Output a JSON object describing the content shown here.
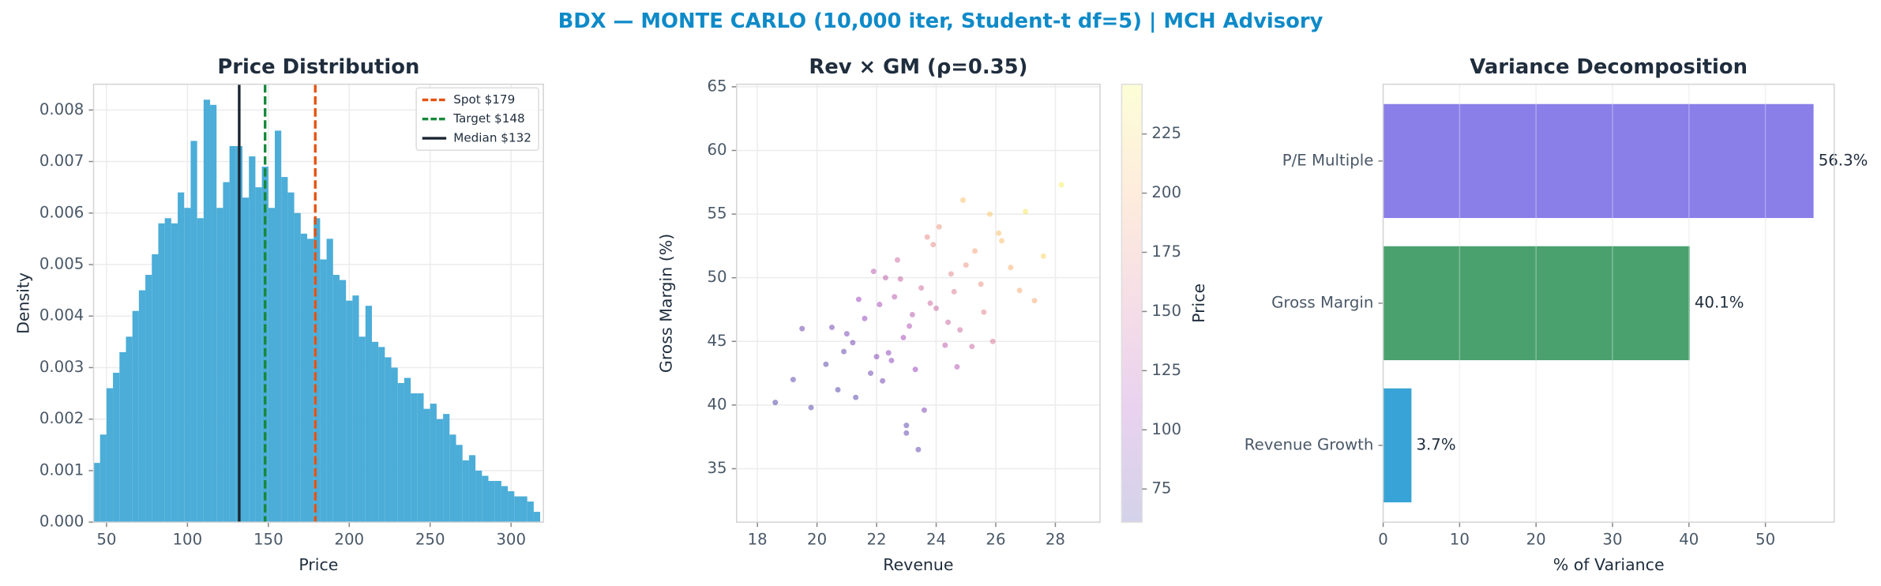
{
  "title": "BDX — MONTE CARLO (10,000 iter, Student-t df=5) | MCH Advisory",
  "chart_data": [
    {
      "type": "histogram",
      "title": "Price Distribution",
      "xlabel": "Price",
      "ylabel": "Density",
      "color": "#4badd8",
      "bins": [
        42,
        46,
        50,
        54,
        58,
        62,
        66,
        70,
        74,
        78,
        82,
        86,
        90,
        94,
        98,
        102,
        106,
        110,
        114,
        118,
        122,
        126,
        130,
        134,
        138,
        142,
        146,
        150,
        154,
        158,
        162,
        166,
        170,
        174,
        178,
        182,
        186,
        190,
        194,
        198,
        202,
        206,
        210,
        214,
        218,
        222,
        226,
        230,
        234,
        238,
        242,
        246,
        250,
        254,
        258,
        262,
        266,
        270,
        274,
        278,
        282,
        286,
        290,
        294,
        298,
        302,
        306,
        310,
        314,
        318
      ],
      "values": [
        0.00115,
        0.0017,
        0.0026,
        0.0029,
        0.0033,
        0.0036,
        0.0041,
        0.0045,
        0.0048,
        0.0052,
        0.0058,
        0.0059,
        0.0058,
        0.0064,
        0.0061,
        0.0074,
        0.0059,
        0.0082,
        0.0081,
        0.0061,
        0.0066,
        0.0073,
        0.0073,
        0.0063,
        0.0071,
        0.0065,
        0.0069,
        0.0061,
        0.0076,
        0.0067,
        0.0064,
        0.006,
        0.0056,
        0.0055,
        0.0059,
        0.0051,
        0.0055,
        0.0048,
        0.0047,
        0.0043,
        0.0044,
        0.0036,
        0.0042,
        0.0035,
        0.0034,
        0.0032,
        0.003,
        0.0027,
        0.0028,
        0.0025,
        0.0025,
        0.0022,
        0.0023,
        0.002,
        0.0021,
        0.0017,
        0.0015,
        0.0012,
        0.0013,
        0.001,
        0.0009,
        0.0008,
        0.0008,
        0.0007,
        0.0006,
        0.0005,
        0.0005,
        0.0004,
        0.0002
      ],
      "xlim": [
        42,
        320
      ],
      "ylim": [
        0,
        0.0085
      ],
      "xticks": [
        50,
        100,
        150,
        200,
        250,
        300
      ],
      "yticks": [
        {
          "value": 0,
          "label": "0.000"
        },
        {
          "value": 0.001,
          "label": "0.001"
        },
        {
          "value": 0.002,
          "label": "0.002"
        },
        {
          "value": 0.003,
          "label": "0.003"
        },
        {
          "value": 0.004,
          "label": "0.004"
        },
        {
          "value": 0.005,
          "label": "0.005"
        },
        {
          "value": 0.006,
          "label": "0.006"
        },
        {
          "value": 0.007,
          "label": "0.007"
        },
        {
          "value": 0.008,
          "label": "0.008"
        }
      ],
      "grid": true,
      "legend": "upper right",
      "lines": [
        {
          "name": "Spot $179",
          "value": 179,
          "color": "#e4520f",
          "style": "dashed"
        },
        {
          "name": "Target $148",
          "value": 148,
          "color": "#17883b",
          "style": "dashed"
        },
        {
          "name": "Median $132",
          "value": 132,
          "color": "#1a2430",
          "style": "solid"
        }
      ]
    },
    {
      "type": "scatter",
      "title": "Rev × GM (ρ=0.35)",
      "xlabel": "Revenue",
      "ylabel": "Gross Margin (%)",
      "x": [
        23.1,
        22.4,
        24.5,
        21.8,
        25.3,
        23.8,
        22.9,
        20.7,
        26.1,
        24.0,
        22.0,
        23.5,
        25.0,
        21.3,
        24.8,
        23.2,
        27.0,
        19.8,
        22.6,
        24.3,
        26.5,
        21.0,
        23.9,
        22.2,
        25.6,
        20.3,
        24.1,
        23.0,
        27.6,
        21.6,
        22.8,
        25.9,
        19.2,
        24.6,
        23.4,
        21.9,
        26.8,
        22.5,
        24.9,
        20.9,
        23.7,
        28.2,
        22.1,
        25.2,
        18.6,
        23.3,
        24.4,
        21.4,
        26.2,
        22.7,
        25.5,
        20.5,
        23.6,
        24.7,
        27.3,
        21.2,
        22.3,
        25.8,
        19.5,
        23.0
      ],
      "y": [
        46.2,
        44.1,
        50.3,
        42.5,
        52.1,
        48.0,
        45.3,
        41.2,
        53.5,
        47.6,
        43.8,
        49.2,
        51.0,
        40.6,
        45.9,
        47.1,
        55.2,
        39.8,
        48.5,
        44.7,
        50.8,
        45.6,
        52.6,
        41.9,
        47.3,
        43.2,
        54.0,
        38.4,
        51.7,
        46.8,
        49.9,
        45.0,
        42.0,
        48.9,
        36.5,
        50.5,
        49.0,
        43.5,
        56.1,
        44.2,
        53.2,
        57.3,
        47.9,
        44.6,
        40.2,
        42.8,
        46.5,
        48.3,
        52.9,
        51.4,
        49.5,
        46.1,
        39.6,
        43.0,
        48.2,
        44.9,
        50.0,
        55.0,
        46.0,
        37.8
      ],
      "values": [
        121,
        98,
        167,
        80,
        190,
        143,
        113,
        66,
        210,
        143,
        90,
        145,
        179,
        68,
        145,
        128,
        234,
        70,
        128,
        130,
        200,
        86,
        172,
        82,
        165,
        72,
        183,
        73,
        222,
        102,
        139,
        156,
        74,
        160,
        76,
        129,
        194,
        96,
        208,
        76,
        172,
        240,
        116,
        143,
        64,
        104,
        143,
        108,
        208,
        146,
        177,
        82,
        89,
        126,
        196,
        85,
        132,
        215,
        78,
        74
      ],
      "colormap": [
        "#0d0887",
        "#7e03a8",
        "#cc4778",
        "#f89540",
        "#f0f921"
      ],
      "clim": [
        61,
        246
      ],
      "colorbar_label": "Price",
      "colorbar_ticks": [
        75,
        100,
        125,
        150,
        175,
        200,
        225
      ],
      "xlim": [
        17.3,
        29.5
      ],
      "ylim": [
        30.8,
        65.2
      ],
      "xticks": [
        18,
        20,
        22,
        24,
        26,
        28
      ],
      "yticks": [
        35,
        40,
        45,
        50,
        55,
        60,
        65
      ],
      "grid": true
    },
    {
      "type": "barh",
      "title": "Variance Decomposition",
      "xlabel": "% of Variance",
      "categories": [
        "Revenue Growth",
        "Gross Margin",
        "P/E Multiple"
      ],
      "values": [
        3.7,
        40.1,
        56.3
      ],
      "value_labels": [
        "3.7%",
        "40.1%",
        "56.3%"
      ],
      "colors": [
        "#38a3d6",
        "#4aa16e",
        "#8a7fe8"
      ],
      "xlim": [
        0,
        59
      ],
      "xticks": [
        0,
        10,
        20,
        30,
        40,
        50
      ],
      "grid": true
    }
  ]
}
